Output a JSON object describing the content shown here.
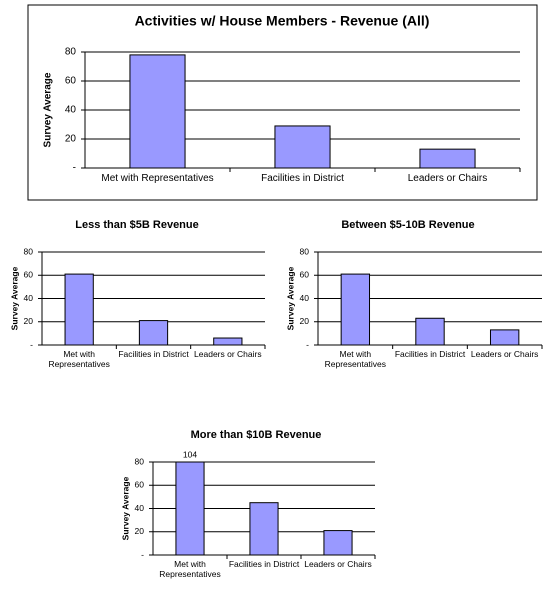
{
  "chart_data": [
    {
      "type": "bar",
      "title": "Activities w/ House Members - Revenue (All)",
      "y_label": "Survey Average",
      "categories": [
        "Met with Representatives",
        "Facilities in District",
        "Leaders or Chairs"
      ],
      "values": [
        78,
        29,
        13
      ],
      "color": "#9999ff",
      "ylim": [
        0,
        80
      ],
      "yticks": [
        {
          "value": 0,
          "label": "-"
        },
        20,
        40,
        60,
        80
      ],
      "grid": true
    },
    {
      "type": "bar",
      "title": "Less than $5B Revenue",
      "y_label": "Survey Average",
      "categories": [
        "Met with Representatives",
        "Facilities in District",
        "Leaders or Chairs"
      ],
      "values": [
        61,
        21,
        6
      ],
      "color": "#9999ff",
      "ylim": [
        0,
        80
      ],
      "yticks": [
        {
          "value": 0,
          "label": "-"
        },
        20,
        40,
        60,
        80
      ],
      "grid": true
    },
    {
      "type": "bar",
      "title": "Between $5-10B Revenue",
      "y_label": "Survey Average",
      "categories": [
        "Met with Representatives",
        "Facilities in District",
        "Leaders or Chairs"
      ],
      "values": [
        61,
        23,
        13
      ],
      "color": "#9999ff",
      "ylim": [
        0,
        80
      ],
      "yticks": [
        {
          "value": 0,
          "label": "-"
        },
        20,
        40,
        60,
        80
      ],
      "grid": true
    },
    {
      "type": "bar",
      "title": "More than $10B Revenue",
      "y_label": "Survey Average",
      "categories": [
        "Met with Representatives",
        "Facilities in District",
        "Leaders or Chairs"
      ],
      "values": [
        104,
        45,
        21
      ],
      "value_labels": [
        "104",
        null,
        null
      ],
      "color": "#9999ff",
      "ylim": [
        0,
        80
      ],
      "yticks": [
        {
          "value": 0,
          "label": "-"
        },
        20,
        40,
        60,
        80
      ],
      "grid": true
    }
  ]
}
